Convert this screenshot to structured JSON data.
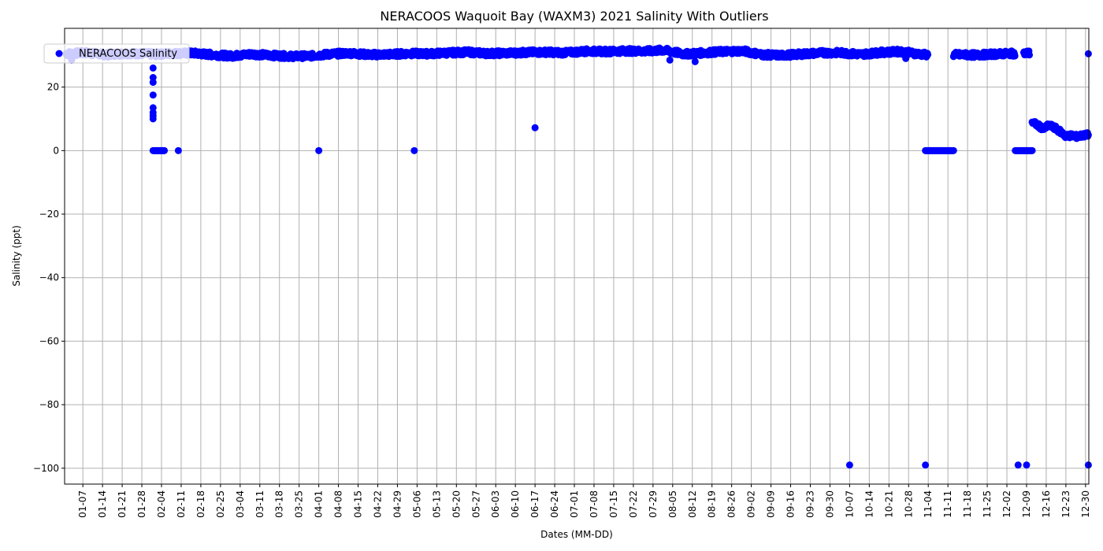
{
  "chart_data": {
    "type": "scatter",
    "title": "NERACOOS Waquoit Bay (WAXM3) 2021 Salinity With Outliers",
    "xlabel": "Dates (MM-DD)",
    "ylabel": "Salinity (ppt)",
    "x_tick_labels": [
      "01-07",
      "01-14",
      "01-21",
      "01-28",
      "02-04",
      "02-11",
      "02-18",
      "02-25",
      "03-04",
      "03-11",
      "03-18",
      "03-25",
      "04-01",
      "04-08",
      "04-15",
      "04-22",
      "04-29",
      "05-06",
      "05-13",
      "05-20",
      "05-27",
      "06-03",
      "06-10",
      "06-17",
      "06-24",
      "07-01",
      "07-08",
      "07-15",
      "07-22",
      "07-29",
      "08-05",
      "08-12",
      "08-19",
      "08-26",
      "09-02",
      "09-09",
      "09-16",
      "09-23",
      "09-30",
      "10-07",
      "10-14",
      "10-21",
      "10-28",
      "11-04",
      "11-11",
      "11-18",
      "11-25",
      "12-02",
      "12-09",
      "12-16",
      "12-23",
      "12-30"
    ],
    "x_tick_dates": [
      "2021-01-07",
      "2021-01-14",
      "2021-01-21",
      "2021-01-28",
      "2021-02-04",
      "2021-02-11",
      "2021-02-18",
      "2021-02-25",
      "2021-03-04",
      "2021-03-11",
      "2021-03-18",
      "2021-03-25",
      "2021-04-01",
      "2021-04-08",
      "2021-04-15",
      "2021-04-22",
      "2021-04-29",
      "2021-05-06",
      "2021-05-13",
      "2021-05-20",
      "2021-05-27",
      "2021-06-03",
      "2021-06-10",
      "2021-06-17",
      "2021-06-24",
      "2021-07-01",
      "2021-07-08",
      "2021-07-15",
      "2021-07-22",
      "2021-07-29",
      "2021-08-05",
      "2021-08-12",
      "2021-08-19",
      "2021-08-26",
      "2021-09-02",
      "2021-09-09",
      "2021-09-16",
      "2021-09-23",
      "2021-09-30",
      "2021-10-07",
      "2021-10-14",
      "2021-10-21",
      "2021-10-28",
      "2021-11-04",
      "2021-11-11",
      "2021-11-18",
      "2021-11-25",
      "2021-12-02",
      "2021-12-09",
      "2021-12-16",
      "2021-12-23",
      "2021-12-30"
    ],
    "xlim": [
      "2020-12-31T12:00",
      "2021-12-31T04:00"
    ],
    "y_ticks": [
      20,
      0,
      -20,
      -40,
      -60,
      -80,
      -100
    ],
    "y_tick_labels": [
      "20",
      "0",
      "−20",
      "−40",
      "−60",
      "−80",
      "−100"
    ],
    "ylim": [
      -105,
      38.5
    ],
    "grid": true,
    "legend_position": "upper-left",
    "series": [
      {
        "name": "NERACOOS Salinity",
        "color": "#0000ff",
        "band_points": [
          [
            "2021-01-01",
            30.5
          ],
          [
            "2021-01-08",
            30.8
          ],
          [
            "2021-01-15",
            30.2
          ],
          [
            "2021-01-22",
            30.6
          ],
          [
            "2021-01-29",
            30.5
          ],
          [
            "2021-02-02",
            30.3
          ],
          [
            "2021-02-08",
            30.6
          ],
          [
            "2021-02-15",
            30.7
          ],
          [
            "2021-02-22",
            30.2
          ],
          [
            "2021-03-01",
            29.8
          ],
          [
            "2021-03-08",
            30.4
          ],
          [
            "2021-03-15",
            30.0
          ],
          [
            "2021-03-22",
            29.7
          ],
          [
            "2021-03-29",
            29.8
          ],
          [
            "2021-04-05",
            30.4
          ],
          [
            "2021-04-12",
            30.7
          ],
          [
            "2021-04-19",
            30.2
          ],
          [
            "2021-04-26",
            30.3
          ],
          [
            "2021-05-03",
            30.6
          ],
          [
            "2021-05-10",
            30.5
          ],
          [
            "2021-05-17",
            30.8
          ],
          [
            "2021-05-24",
            31.0
          ],
          [
            "2021-05-31",
            30.6
          ],
          [
            "2021-06-07",
            30.7
          ],
          [
            "2021-06-14",
            30.9
          ],
          [
            "2021-06-21",
            31.0
          ],
          [
            "2021-06-28",
            30.8
          ],
          [
            "2021-07-05",
            31.3
          ],
          [
            "2021-07-12",
            31.2
          ],
          [
            "2021-07-19",
            31.4
          ],
          [
            "2021-07-26",
            31.3
          ],
          [
            "2021-08-02",
            31.6
          ],
          [
            "2021-08-09",
            30.4
          ],
          [
            "2021-08-16",
            30.8
          ],
          [
            "2021-08-23",
            31.2
          ],
          [
            "2021-08-30",
            31.4
          ],
          [
            "2021-09-06",
            30.2
          ],
          [
            "2021-09-13",
            30.0
          ],
          [
            "2021-09-20",
            30.4
          ],
          [
            "2021-09-27",
            30.8
          ],
          [
            "2021-10-04",
            30.8
          ],
          [
            "2021-10-11",
            30.3
          ],
          [
            "2021-10-18",
            30.9
          ],
          [
            "2021-10-25",
            31.2
          ],
          [
            "2021-11-01",
            30.4
          ],
          [
            "2021-11-03",
            30.2
          ],
          [
            "2021-11-14",
            30.2
          ],
          [
            "2021-11-21",
            30.1
          ],
          [
            "2021-11-28",
            30.4
          ],
          [
            "2021-12-04",
            30.6
          ],
          [
            "2021-12-06",
            30.2
          ],
          [
            "2021-12-09",
            30.7
          ]
        ],
        "band_gaps": [
          [
            "2021-11-04",
            "2021-11-13"
          ],
          [
            "2021-12-05",
            "2021-12-08"
          ],
          [
            "2021-12-11",
            "2021-12-30"
          ]
        ],
        "low_band_points": [
          [
            "2021-12-11",
            9.0
          ],
          [
            "2021-12-13",
            8.0
          ],
          [
            "2021-12-15",
            6.8
          ],
          [
            "2021-12-17",
            8.0
          ],
          [
            "2021-12-19",
            7.2
          ],
          [
            "2021-12-21",
            6.0
          ],
          [
            "2021-12-23",
            4.5
          ],
          [
            "2021-12-25",
            4.8
          ],
          [
            "2021-12-27",
            4.4
          ],
          [
            "2021-12-29",
            4.8
          ],
          [
            "2021-12-31",
            5.0
          ]
        ],
        "points": [
          [
            "2021-01-03",
            28.5
          ],
          [
            "2021-02-01",
            26.0
          ],
          [
            "2021-02-01",
            23.0
          ],
          [
            "2021-02-01",
            21.5
          ],
          [
            "2021-02-01",
            17.5
          ],
          [
            "2021-02-01",
            13.5
          ],
          [
            "2021-02-01",
            12.0
          ],
          [
            "2021-02-01",
            11.0
          ],
          [
            "2021-02-01",
            10.0
          ],
          [
            "2021-02-10",
            0.0
          ],
          [
            "2021-04-01",
            0.0
          ],
          [
            "2021-05-05",
            0.0
          ],
          [
            "2021-06-17",
            7.2
          ],
          [
            "2021-08-04",
            28.5
          ],
          [
            "2021-08-13",
            28.0
          ],
          [
            "2021-10-07",
            -99.0
          ],
          [
            "2021-11-03",
            -99.0
          ],
          [
            "2021-12-06",
            -99.0
          ],
          [
            "2021-12-09",
            -99.0
          ],
          [
            "2021-12-31",
            -99.0
          ],
          [
            "2021-12-31",
            30.5
          ],
          [
            "2021-10-27",
            29.0
          ]
        ],
        "zero_runs": [
          [
            "2021-02-01",
            "2021-02-05"
          ],
          [
            "2021-11-03",
            "2021-11-13"
          ],
          [
            "2021-12-05",
            "2021-12-11"
          ]
        ]
      }
    ]
  }
}
